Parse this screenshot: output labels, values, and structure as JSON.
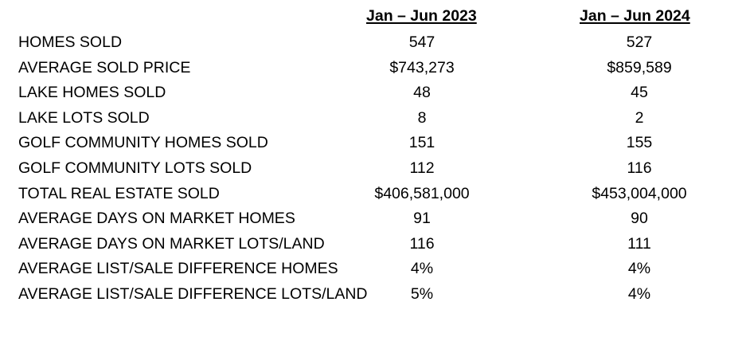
{
  "columns": [
    "Jan – Jun 2023",
    "Jan – Jun 2024"
  ],
  "rows": [
    {
      "label": "HOMES SOLD",
      "v2023": "547",
      "v2024": "527"
    },
    {
      "label": "AVERAGE SOLD PRICE",
      "v2023": "$743,273",
      "v2024": "$859,589"
    },
    {
      "label": "LAKE HOMES SOLD",
      "v2023": "48",
      "v2024": "45"
    },
    {
      "label": "LAKE LOTS SOLD",
      "v2023": "8",
      "v2024": "2"
    },
    {
      "label": "GOLF COMMUNITY HOMES SOLD",
      "v2023": "151",
      "v2024": "155"
    },
    {
      "label": "GOLF COMMUNITY LOTS SOLD",
      "v2023": "112",
      "v2024": "116"
    },
    {
      "label": "TOTAL REAL ESTATE SOLD",
      "v2023": "$406,581,000",
      "v2024": "$453,004,000"
    },
    {
      "label": "AVERAGE DAYS ON MARKET HOMES",
      "v2023": "91",
      "v2024": "90"
    },
    {
      "label": "AVERAGE DAYS ON MARKET LOTS/LAND",
      "v2023": "116",
      "v2024": "111"
    },
    {
      "label": "AVERAGE LIST/SALE DIFFERENCE HOMES",
      "v2023": "4%",
      "v2024": "4%"
    },
    {
      "label": "AVERAGE LIST/SALE DIFFERENCE LOTS/LAND",
      "v2023": "5%",
      "v2024": "4%"
    }
  ]
}
